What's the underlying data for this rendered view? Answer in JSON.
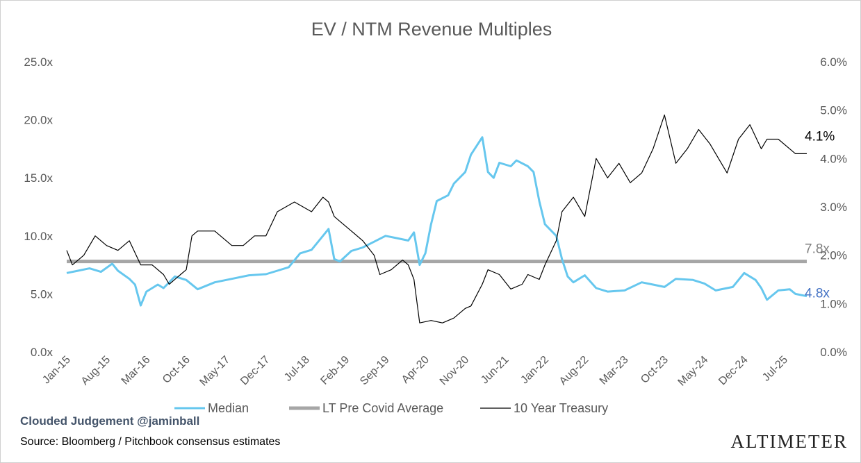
{
  "chart_data": {
    "type": "line",
    "title": "EV / NTM Revenue Multiples",
    "x_tick_labels": [
      "Jan-15",
      "Aug-15",
      "Mar-16",
      "Oct-16",
      "May-17",
      "Dec-17",
      "Jul-18",
      "Feb-19",
      "Sep-19",
      "Apr-20",
      "Nov-20",
      "Jun-21",
      "Jan-22",
      "Aug-22",
      "Mar-23",
      "Oct-23",
      "May-24",
      "Dec-24",
      "Jul-25"
    ],
    "x_range": [
      "2015-01",
      "2025-11"
    ],
    "y_left": {
      "range": [
        0,
        25
      ],
      "ticks": [
        "0.0x",
        "5.0x",
        "10.0x",
        "15.0x",
        "20.0x",
        "25.0x"
      ]
    },
    "y_right": {
      "range": [
        0,
        6
      ],
      "ticks": [
        "0.0%",
        "1.0%",
        "2.0%",
        "3.0%",
        "4.0%",
        "5.0%",
        "6.0%"
      ]
    },
    "legend": {
      "position": "bottom"
    },
    "series": [
      {
        "name": "Median",
        "axis": "left",
        "color": "#66c7ee",
        "points": [
          [
            "2015-01",
            6.8
          ],
          [
            "2015-03",
            7.0
          ],
          [
            "2015-05",
            7.2
          ],
          [
            "2015-07",
            6.9
          ],
          [
            "2015-09",
            7.6
          ],
          [
            "2015-10",
            7.0
          ],
          [
            "2015-12",
            6.3
          ],
          [
            "2016-01",
            5.8
          ],
          [
            "2016-02",
            4.0
          ],
          [
            "2016-03",
            5.2
          ],
          [
            "2016-05",
            5.8
          ],
          [
            "2016-06",
            5.5
          ],
          [
            "2016-08",
            6.5
          ],
          [
            "2016-10",
            6.2
          ],
          [
            "2016-12",
            5.4
          ],
          [
            "2017-03",
            6.0
          ],
          [
            "2017-06",
            6.3
          ],
          [
            "2017-09",
            6.6
          ],
          [
            "2017-12",
            6.7
          ],
          [
            "2018-02",
            7.0
          ],
          [
            "2018-04",
            7.3
          ],
          [
            "2018-06",
            8.5
          ],
          [
            "2018-08",
            8.8
          ],
          [
            "2018-10",
            10.0
          ],
          [
            "2018-11",
            10.6
          ],
          [
            "2018-12",
            8.0
          ],
          [
            "2019-01",
            7.8
          ],
          [
            "2019-03",
            8.7
          ],
          [
            "2019-05",
            9.0
          ],
          [
            "2019-07",
            9.5
          ],
          [
            "2019-09",
            10.0
          ],
          [
            "2019-11",
            9.8
          ],
          [
            "2020-01",
            9.6
          ],
          [
            "2020-02",
            10.3
          ],
          [
            "2020-03",
            7.5
          ],
          [
            "2020-04",
            8.5
          ],
          [
            "2020-05",
            11.0
          ],
          [
            "2020-06",
            13.0
          ],
          [
            "2020-08",
            13.5
          ],
          [
            "2020-09",
            14.5
          ],
          [
            "2020-11",
            15.5
          ],
          [
            "2020-12",
            17.0
          ],
          [
            "2021-02",
            18.5
          ],
          [
            "2021-03",
            15.5
          ],
          [
            "2021-04",
            15.0
          ],
          [
            "2021-05",
            16.3
          ],
          [
            "2021-07",
            16.0
          ],
          [
            "2021-08",
            16.5
          ],
          [
            "2021-10",
            16.0
          ],
          [
            "2021-11",
            15.5
          ],
          [
            "2021-12",
            13.0
          ],
          [
            "2022-01",
            11.0
          ],
          [
            "2022-03",
            10.0
          ],
          [
            "2022-04",
            8.0
          ],
          [
            "2022-05",
            6.5
          ],
          [
            "2022-06",
            6.0
          ],
          [
            "2022-08",
            6.6
          ],
          [
            "2022-10",
            5.5
          ],
          [
            "2022-12",
            5.2
          ],
          [
            "2023-03",
            5.3
          ],
          [
            "2023-06",
            6.0
          ],
          [
            "2023-08",
            5.8
          ],
          [
            "2023-10",
            5.6
          ],
          [
            "2023-12",
            6.3
          ],
          [
            "2024-03",
            6.2
          ],
          [
            "2024-05",
            5.9
          ],
          [
            "2024-07",
            5.3
          ],
          [
            "2024-10",
            5.6
          ],
          [
            "2024-12",
            6.8
          ],
          [
            "2025-02",
            6.2
          ],
          [
            "2025-03",
            5.5
          ],
          [
            "2025-04",
            4.5
          ],
          [
            "2025-06",
            5.3
          ],
          [
            "2025-08",
            5.4
          ],
          [
            "2025-09",
            5.0
          ],
          [
            "2025-11",
            4.8
          ]
        ]
      },
      {
        "name": "LT Pre Covid Average",
        "axis": "left",
        "color": "#a6a6a6",
        "points": [
          [
            "2015-01",
            7.8
          ],
          [
            "2025-11",
            7.8
          ]
        ]
      },
      {
        "name": "10 Year Treasury",
        "axis": "right",
        "color": "#000000",
        "points": [
          [
            "2015-01",
            2.1
          ],
          [
            "2015-02",
            1.8
          ],
          [
            "2015-04",
            2.0
          ],
          [
            "2015-06",
            2.4
          ],
          [
            "2015-08",
            2.2
          ],
          [
            "2015-10",
            2.1
          ],
          [
            "2015-12",
            2.3
          ],
          [
            "2016-02",
            1.8
          ],
          [
            "2016-04",
            1.8
          ],
          [
            "2016-06",
            1.6
          ],
          [
            "2016-07",
            1.4
          ],
          [
            "2016-09",
            1.6
          ],
          [
            "2016-10",
            1.7
          ],
          [
            "2016-11",
            2.4
          ],
          [
            "2016-12",
            2.5
          ],
          [
            "2017-03",
            2.5
          ],
          [
            "2017-06",
            2.2
          ],
          [
            "2017-08",
            2.2
          ],
          [
            "2017-10",
            2.4
          ],
          [
            "2017-12",
            2.4
          ],
          [
            "2018-02",
            2.9
          ],
          [
            "2018-05",
            3.1
          ],
          [
            "2018-08",
            2.9
          ],
          [
            "2018-10",
            3.2
          ],
          [
            "2018-11",
            3.1
          ],
          [
            "2018-12",
            2.8
          ],
          [
            "2019-01",
            2.7
          ],
          [
            "2019-03",
            2.5
          ],
          [
            "2019-05",
            2.3
          ],
          [
            "2019-07",
            2.0
          ],
          [
            "2019-08",
            1.6
          ],
          [
            "2019-10",
            1.7
          ],
          [
            "2019-12",
            1.9
          ],
          [
            "2020-01",
            1.8
          ],
          [
            "2020-02",
            1.5
          ],
          [
            "2020-03",
            0.6
          ],
          [
            "2020-05",
            0.65
          ],
          [
            "2020-07",
            0.6
          ],
          [
            "2020-09",
            0.7
          ],
          [
            "2020-11",
            0.9
          ],
          [
            "2020-12",
            0.95
          ],
          [
            "2021-02",
            1.4
          ],
          [
            "2021-03",
            1.7
          ],
          [
            "2021-05",
            1.6
          ],
          [
            "2021-07",
            1.3
          ],
          [
            "2021-09",
            1.4
          ],
          [
            "2021-10",
            1.6
          ],
          [
            "2021-12",
            1.5
          ],
          [
            "2022-01",
            1.8
          ],
          [
            "2022-03",
            2.3
          ],
          [
            "2022-04",
            2.9
          ],
          [
            "2022-06",
            3.2
          ],
          [
            "2022-08",
            2.8
          ],
          [
            "2022-10",
            4.0
          ],
          [
            "2022-12",
            3.6
          ],
          [
            "2023-02",
            3.9
          ],
          [
            "2023-04",
            3.5
          ],
          [
            "2023-06",
            3.7
          ],
          [
            "2023-08",
            4.2
          ],
          [
            "2023-10",
            4.9
          ],
          [
            "2023-12",
            3.9
          ],
          [
            "2024-02",
            4.2
          ],
          [
            "2024-04",
            4.6
          ],
          [
            "2024-06",
            4.3
          ],
          [
            "2024-08",
            3.9
          ],
          [
            "2024-09",
            3.7
          ],
          [
            "2024-11",
            4.4
          ],
          [
            "2025-01",
            4.7
          ],
          [
            "2025-03",
            4.2
          ],
          [
            "2025-04",
            4.4
          ],
          [
            "2025-06",
            4.4
          ],
          [
            "2025-08",
            4.2
          ],
          [
            "2025-09",
            4.1
          ],
          [
            "2025-11",
            4.1
          ]
        ]
      }
    ],
    "end_labels": [
      {
        "text": "7.8x",
        "color": "#7f7f7f",
        "axis": "left",
        "value": 7.8
      },
      {
        "text": "4.8x",
        "color": "#4472c4",
        "axis": "left",
        "value": 4.8
      },
      {
        "text": "4.1%",
        "color": "#000000",
        "axis": "right",
        "value": 4.1
      }
    ]
  },
  "footer": {
    "credit": "Clouded Judgement @jaminball",
    "source": "Source: Bloomberg / Pitchbook consensus estimates",
    "brand": "ALTIMETER"
  }
}
